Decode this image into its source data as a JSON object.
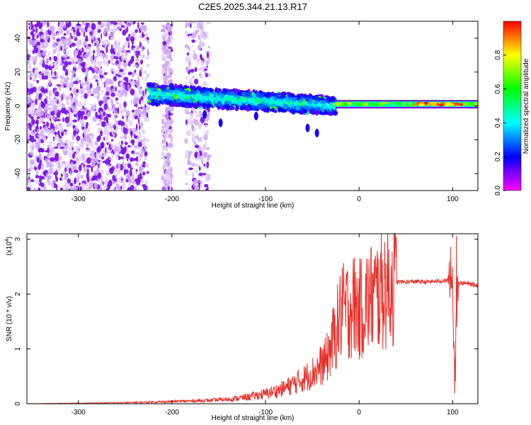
{
  "title": "C2E5.2025.344.21.13.R17",
  "chart_data": [
    {
      "type": "heatmap",
      "title": "C2E5.2025.344.21.13.R17",
      "xlabel": "Height of straight line (km)",
      "ylabel": "Frequency (Hz)",
      "xlim": [
        -355,
        127
      ],
      "ylim": [
        -50,
        50
      ],
      "xticks": [
        -300,
        -200,
        -100,
        0,
        100
      ],
      "yticks": [
        -40,
        -20,
        0,
        20,
        40
      ],
      "colorbar": {
        "label": "Normalized spectral amplitude",
        "range": [
          0,
          1
        ],
        "ticks": [
          "0.0",
          "0.2",
          "0.4",
          "0.6",
          "0.8"
        ],
        "stops": [
          "#ff00ff",
          "#0000ff",
          "#00ffff",
          "#00ff00",
          "#ffff00",
          "#ff0000"
        ]
      },
      "regions": [
        {
          "name": "noise",
          "x": [
            -355,
            -225
          ],
          "freq": [
            -50,
            50
          ],
          "amplitude": 0.12
        },
        {
          "name": "noise-strip",
          "x": [
            -210,
            -200
          ],
          "freq": [
            -50,
            50
          ],
          "amplitude": 0.06
        },
        {
          "name": "noise-strip",
          "x": [
            -185,
            -160
          ],
          "freq": [
            -50,
            50
          ],
          "amplitude": 0.05
        },
        {
          "name": "band",
          "x": [
            -225,
            -25
          ],
          "freq_center": [
            7,
            0
          ],
          "freq_halfwidth": [
            6,
            5
          ],
          "amplitude": 0.4
        },
        {
          "name": "tone",
          "x": [
            -25,
            127
          ],
          "freq_center": [
            1,
            1
          ],
          "freq_halfwidth": [
            1.5,
            1.5
          ],
          "amplitude": 0.9
        }
      ]
    },
    {
      "type": "line",
      "xlabel": "Height of straight line (km)",
      "ylabel": "SNR (10 * v/v)",
      "exponent_label": "(x10",
      "exponent": "4",
      "xlim": [
        -355,
        127
      ],
      "ylim": [
        0,
        3.1
      ],
      "xticks": [
        -300,
        -200,
        -100,
        0,
        100
      ],
      "yticks": [
        0,
        1,
        2,
        3
      ],
      "color": "#e8302a",
      "series": [
        {
          "name": "SNR",
          "x": [
            -355,
            -300,
            -250,
            -200,
            -180,
            -160,
            -140,
            -120,
            -100,
            -80,
            -60,
            -45,
            -35,
            -25,
            -20,
            -15,
            -10,
            -5,
            0,
            5,
            10,
            20,
            30,
            40,
            50,
            60,
            70,
            80,
            90,
            95,
            100,
            102,
            105,
            110,
            120,
            127
          ],
          "y": [
            0.0,
            0.01,
            0.02,
            0.04,
            0.05,
            0.06,
            0.08,
            0.12,
            0.18,
            0.28,
            0.45,
            0.62,
            0.8,
            1.3,
            1.6,
            1.7,
            1.75,
            1.8,
            1.7,
            1.8,
            1.9,
            2.0,
            2.15,
            2.22,
            2.22,
            2.23,
            2.22,
            2.23,
            2.24,
            2.25,
            2.3,
            0.4,
            2.2,
            2.2,
            2.18,
            2.15
          ],
          "peaks": [
            {
              "x": -18,
              "y": 2.47
            },
            {
              "x": -27,
              "y": 1.6
            },
            {
              "x": 98,
              "y": 2.85
            },
            {
              "x": 104,
              "y": 3.05
            },
            {
              "x": 103,
              "y": 0.42
            }
          ]
        }
      ]
    }
  ]
}
